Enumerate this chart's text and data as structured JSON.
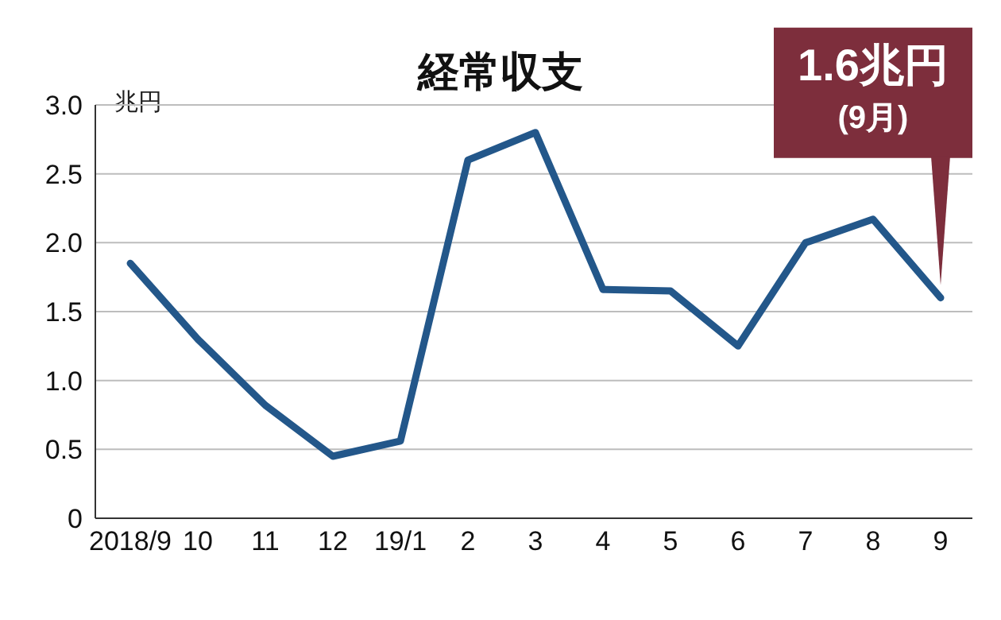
{
  "chart_data": {
    "type": "line",
    "title": "経常収支",
    "ylabel": "兆円",
    "categories": [
      "2018/9",
      "10",
      "11",
      "12",
      "19/1",
      "2",
      "3",
      "4",
      "5",
      "6",
      "7",
      "8",
      "9"
    ],
    "series": [
      {
        "color": "#23578a",
        "values": [
          1.85,
          1.3,
          0.82,
          0.45,
          0.56,
          2.6,
          2.8,
          1.66,
          1.65,
          1.25,
          2.0,
          2.17,
          1.6
        ]
      }
    ],
    "ylim": [
      0,
      3
    ],
    "yticks": [
      {
        "value": 0,
        "label": "0"
      },
      {
        "value": 0.5,
        "label": "0.5"
      },
      {
        "value": 1,
        "label": "1.0"
      },
      {
        "value": 1.5,
        "label": "1.5"
      },
      {
        "value": 2,
        "label": "2.0"
      },
      {
        "value": 2.5,
        "label": "2.5"
      },
      {
        "value": 3,
        "label": "3.0"
      }
    ],
    "grid": "y",
    "marker": "none",
    "line_style": "solid",
    "legend": false,
    "annotations": [
      {
        "text": "1.6兆円 (9月)",
        "x": "9",
        "y": 1.6
      }
    ]
  }
}
